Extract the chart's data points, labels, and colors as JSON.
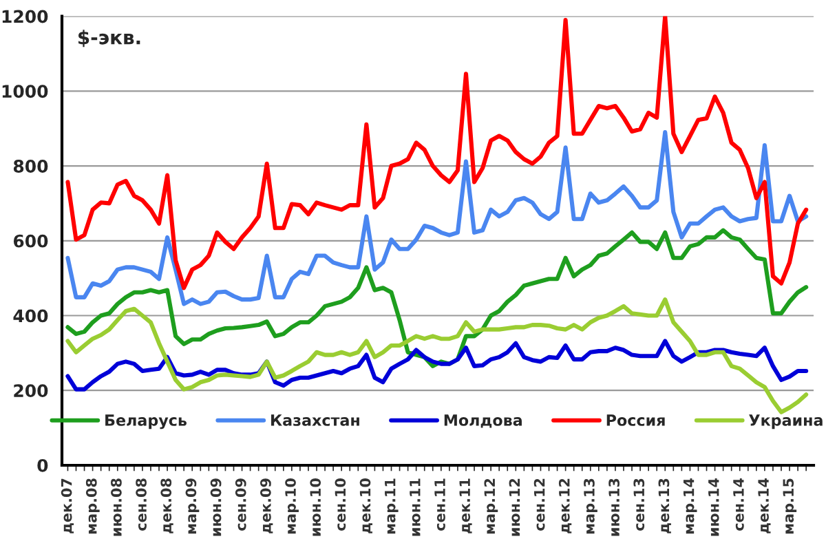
{
  "chart_data": {
    "type": "line",
    "categories": [
      "дек.07",
      null,
      null,
      "мар.08",
      null,
      null,
      "июн.08",
      null,
      null,
      "сен.08",
      null,
      null,
      "дек.08",
      null,
      null,
      "мар.09",
      null,
      null,
      "июн.09",
      null,
      null,
      "сен.09",
      null,
      null,
      "дек.09",
      null,
      null,
      "мар.10",
      null,
      null,
      "июн.10",
      null,
      null,
      "сен.10",
      null,
      null,
      "дек.10",
      null,
      null,
      "мар.11",
      null,
      null,
      "июн.11",
      null,
      null,
      "сен.11",
      null,
      null,
      "дек.11",
      null,
      null,
      "мар.12",
      null,
      null,
      "июн.12",
      null,
      null,
      "сен.12",
      null,
      null,
      "дек.12",
      null,
      null,
      "мар.13",
      null,
      null,
      "июн.13",
      null,
      null,
      "сен.13",
      null,
      null,
      "дек.13",
      null,
      null,
      "мар.14",
      null,
      null,
      "июн.14",
      null,
      null,
      "сен.14",
      null,
      null,
      "дек.14",
      null,
      null,
      "мар.15",
      null,
      null
    ],
    "series": [
      {
        "name": "Беларусь",
        "color": "#1e9e1e",
        "values": [
          369,
          351,
          357,
          382,
          400,
          406,
          431,
          449,
          462,
          462,
          468,
          462,
          468,
          345,
          324,
          336,
          336,
          351,
          360,
          366,
          367,
          369,
          372,
          375,
          384,
          345,
          351,
          369,
          382,
          382,
          400,
          425,
          431,
          437,
          449,
          474,
          529,
          468,
          474,
          462,
          388,
          302,
          295,
          289,
          265,
          277,
          271,
          283,
          345,
          345,
          363,
          400,
          412,
          437,
          455,
          480,
          486,
          492,
          498,
          498,
          554,
          505,
          523,
          535,
          560,
          566,
          585,
          603,
          622,
          597,
          597,
          578,
          622,
          554,
          554,
          585,
          591,
          609,
          609,
          628,
          609,
          603,
          578,
          554,
          550,
          406,
          406,
          437,
          462,
          476
        ]
      },
      {
        "name": "Казахстан",
        "color": "#4a86f0",
        "values": [
          554,
          449,
          449,
          486,
          480,
          492,
          523,
          529,
          529,
          523,
          517,
          498,
          609,
          523,
          431,
          443,
          431,
          437,
          462,
          464,
          452,
          443,
          443,
          447,
          560,
          449,
          449,
          498,
          517,
          511,
          560,
          560,
          542,
          535,
          529,
          529,
          665,
          523,
          542,
          603,
          578,
          578,
          603,
          640,
          634,
          622,
          615,
          622,
          812,
          622,
          628,
          683,
          665,
          677,
          708,
          714,
          702,
          671,
          658,
          677,
          849,
          658,
          658,
          726,
          702,
          708,
          726,
          745,
          720,
          689,
          689,
          708,
          890,
          677,
          609,
          646,
          646,
          665,
          683,
          689,
          665,
          652,
          658,
          661,
          855,
          652,
          652,
          720,
          652,
          665
        ]
      },
      {
        "name": "Молдова",
        "color": "#0000d8",
        "values": [
          238,
          203,
          203,
          222,
          238,
          250,
          271,
          277,
          271,
          252,
          255,
          258,
          289,
          246,
          240,
          242,
          250,
          242,
          255,
          255,
          246,
          242,
          242,
          246,
          277,
          222,
          213,
          228,
          234,
          234,
          240,
          246,
          252,
          246,
          258,
          265,
          295,
          234,
          222,
          258,
          271,
          283,
          308,
          289,
          277,
          271,
          271,
          283,
          314,
          265,
          267,
          283,
          289,
          302,
          326,
          289,
          281,
          277,
          289,
          287,
          320,
          283,
          283,
          302,
          305,
          305,
          314,
          308,
          295,
          292,
          292,
          292,
          332,
          292,
          277,
          289,
          302,
          302,
          308,
          308,
          302,
          298,
          295,
          292,
          314,
          265,
          228,
          237,
          252,
          252
        ]
      },
      {
        "name": "Россия",
        "color": "#ff0000",
        "values": [
          757,
          603,
          615,
          683,
          702,
          700,
          750,
          760,
          720,
          708,
          683,
          646,
          775,
          548,
          474,
          523,
          535,
          560,
          622,
          597,
          578,
          609,
          634,
          665,
          806,
          634,
          634,
          698,
          695,
          671,
          702,
          695,
          689,
          683,
          695,
          695,
          911,
          689,
          714,
          800,
          806,
          818,
          862,
          843,
          800,
          775,
          757,
          788,
          1046,
          757,
          794,
          868,
          880,
          868,
          837,
          818,
          806,
          825,
          862,
          880,
          1190,
          886,
          886,
          923,
          960,
          954,
          960,
          929,
          892,
          898,
          942,
          929,
          1200,
          886,
          837,
          880,
          923,
          927,
          985,
          942,
          862,
          843,
          794,
          714,
          757,
          505,
          486,
          542,
          646,
          683
        ]
      },
      {
        "name": "Украина",
        "color": "#9acd32",
        "values": [
          332,
          302,
          320,
          338,
          348,
          363,
          388,
          412,
          418,
          400,
          382,
          326,
          277,
          228,
          203,
          209,
          222,
          228,
          240,
          242,
          240,
          238,
          236,
          242,
          277,
          234,
          240,
          252,
          265,
          277,
          302,
          295,
          295,
          302,
          295,
          302,
          332,
          289,
          302,
          320,
          320,
          332,
          345,
          338,
          345,
          338,
          338,
          345,
          382,
          357,
          363,
          363,
          363,
          366,
          369,
          369,
          375,
          375,
          373,
          366,
          363,
          375,
          363,
          382,
          394,
          400,
          412,
          425,
          406,
          403,
          400,
          400,
          443,
          382,
          357,
          332,
          295,
          295,
          302,
          302,
          265,
          258,
          240,
          222,
          209,
          172,
          142,
          154,
          169,
          189
        ]
      }
    ],
    "annotations": [
      "$-экв."
    ],
    "ylim": [
      0,
      1200
    ],
    "yticks": [
      0,
      200,
      400,
      600,
      800,
      1000,
      1200
    ],
    "grid": "y",
    "legend": "bottom",
    "marker": "none",
    "line_style": "solid"
  }
}
